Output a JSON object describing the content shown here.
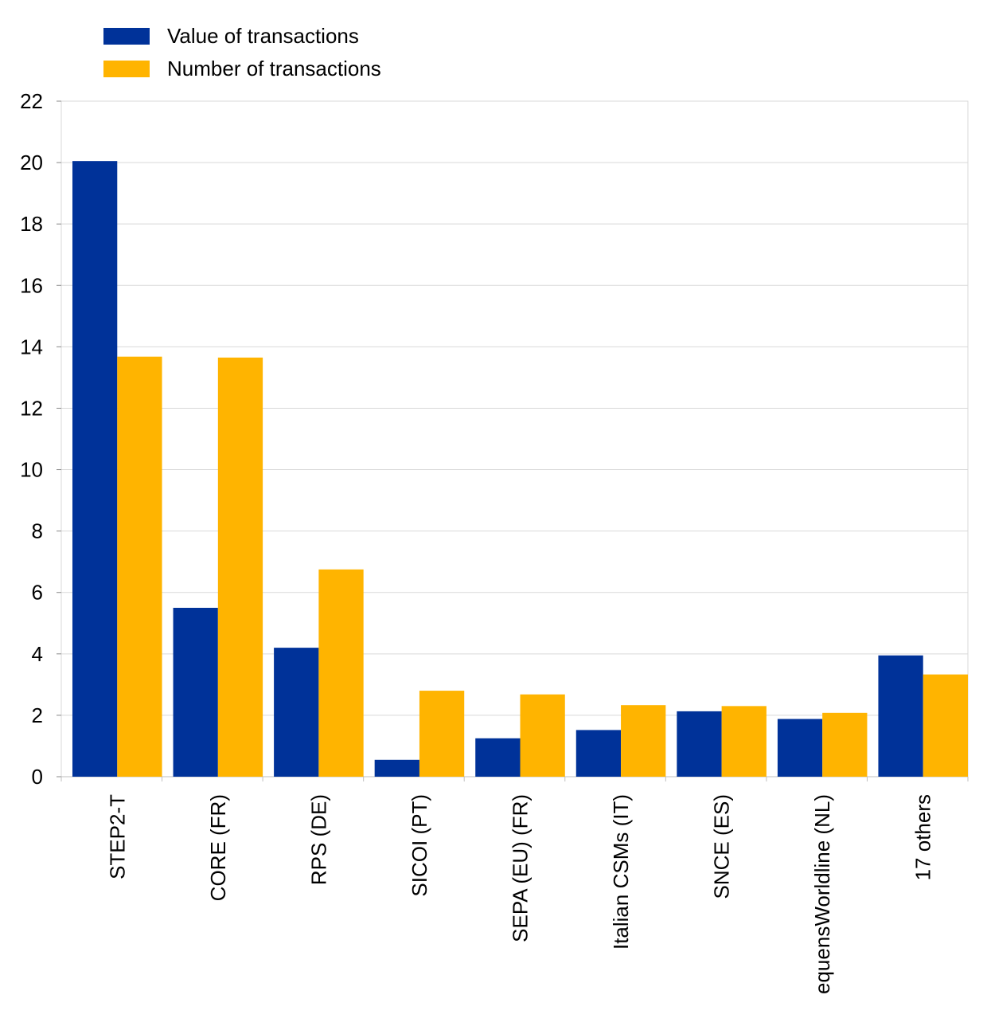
{
  "chart_data": {
    "type": "bar",
    "categories": [
      "STEP2-T",
      "CORE (FR)",
      "RPS (DE)",
      "SICOI (PT)",
      "SEPA (EU) (FR)",
      "Italian CSMs (IT)",
      "SNCE (ES)",
      "equensWorldline (NL)",
      "17 others"
    ],
    "series": [
      {
        "name": "Value of transactions",
        "color": "#003299",
        "values": [
          20.05,
          5.5,
          4.2,
          0.55,
          1.25,
          1.52,
          2.13,
          1.88,
          3.95
        ]
      },
      {
        "name": "Number of transactions",
        "color": "#FFB400",
        "values": [
          13.68,
          13.65,
          6.75,
          2.8,
          2.68,
          2.33,
          2.3,
          2.08,
          3.33
        ]
      }
    ],
    "yticks": [
      "0",
      "2",
      "4",
      "6",
      "8",
      "10",
      "12",
      "14",
      "16",
      "18",
      "20",
      "22"
    ],
    "ylim": [
      0,
      22
    ],
    "grid": true,
    "legend_position": "top-left",
    "title": "",
    "xlabel": "",
    "ylabel": ""
  }
}
